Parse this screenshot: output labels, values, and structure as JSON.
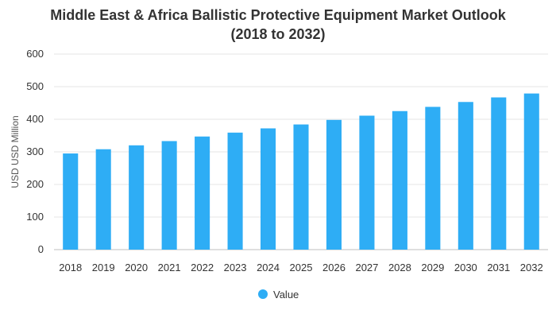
{
  "chart_data": {
    "type": "bar",
    "title_line1": "Middle East & Africa Ballistic Protective Equipment Market Outlook",
    "title_line2": "(2018 to 2032)",
    "xlabel": "",
    "ylabel": "USD USD Million",
    "ylim": [
      0,
      600
    ],
    "yticks": [
      0,
      100,
      200,
      300,
      400,
      500,
      600
    ],
    "grid": true,
    "legend_position": "bottom",
    "categories": [
      "2018",
      "2019",
      "2020",
      "2021",
      "2022",
      "2023",
      "2024",
      "2025",
      "2026",
      "2027",
      "2028",
      "2029",
      "2030",
      "2031",
      "2032"
    ],
    "series": [
      {
        "name": "Value",
        "color": "#2EADF5",
        "values": [
          295,
          308,
          320,
          333,
          347,
          359,
          372,
          384,
          398,
          411,
          425,
          438,
          453,
          467,
          479
        ]
      }
    ]
  }
}
